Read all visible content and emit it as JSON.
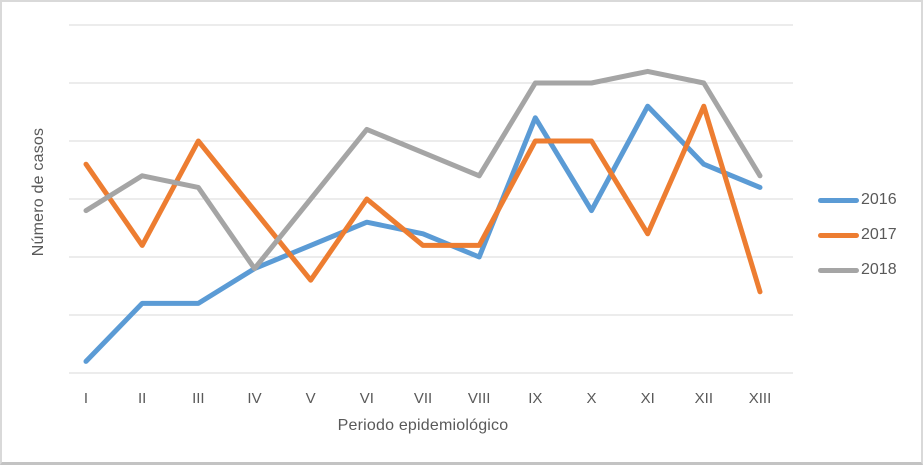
{
  "chart_data": {
    "type": "line",
    "title": "",
    "xlabel": "Periodo epidemiológico",
    "ylabel": "Número de casos",
    "categories": [
      "I",
      "II",
      "III",
      "IV",
      "V",
      "VI",
      "VII",
      "VIII",
      "IX",
      "X",
      "XI",
      "XII",
      "XIII"
    ],
    "series": [
      {
        "name": "2016",
        "color": "#5B9BD5",
        "values": [
          1,
          6,
          6,
          9,
          11,
          13,
          12,
          10,
          22,
          14,
          23,
          18,
          16
        ]
      },
      {
        "name": "2017",
        "color": "#ED7D31",
        "values": [
          18,
          11,
          20,
          14,
          8,
          15,
          11,
          11,
          20,
          20,
          12,
          23,
          7
        ]
      },
      {
        "name": "2018",
        "color": "#A5A5A5",
        "values": [
          14,
          17,
          16,
          9,
          15,
          21,
          19,
          17,
          25,
          25,
          26,
          25,
          17
        ]
      }
    ],
    "ylim": [
      0,
      30
    ],
    "grid_step": 5,
    "grid_on": true,
    "y_tick_labels_visible": false,
    "legend_position": "right",
    "gridline_color": "#D9D9D9",
    "axis_text_color": "#595959",
    "line_width": 5
  }
}
